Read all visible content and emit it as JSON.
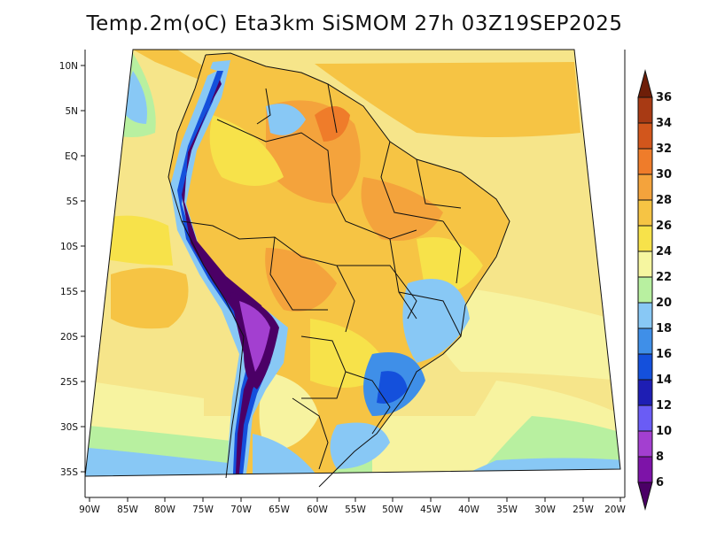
{
  "title": "Temp.2m(oC) Eta3km SiSMOM 27h 03Z19SEP2025",
  "lat_labels": [
    "10N",
    "5N",
    "EQ",
    "5S",
    "10S",
    "15S",
    "20S",
    "25S",
    "30S",
    "35S"
  ],
  "lon_labels": [
    "90W",
    "85W",
    "80W",
    "75W",
    "70W",
    "65W",
    "60W",
    "55W",
    "50W",
    "45W",
    "40W",
    "35W",
    "30W",
    "25W",
    "20W"
  ],
  "colorbar": {
    "labels": [
      "6",
      "8",
      "10",
      "12",
      "14",
      "16",
      "18",
      "20",
      "22",
      "24",
      "26",
      "28",
      "30",
      "32",
      "34",
      "36"
    ],
    "colors": [
      "#4b0066",
      "#7d13a8",
      "#a33fd0",
      "#6a5cf5",
      "#1e1eb4",
      "#1450dc",
      "#3f8fe8",
      "#88c8f5",
      "#b8f0a0",
      "#f6f6a0",
      "#f7e24a",
      "#f6c444",
      "#f4a33c",
      "#ef7c2a",
      "#d2561c",
      "#a83a14",
      "#6e1e08"
    ]
  }
}
